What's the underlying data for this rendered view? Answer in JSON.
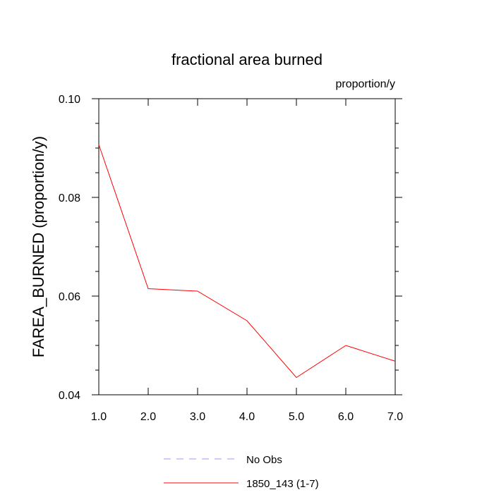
{
  "chart_data": {
    "type": "line",
    "title": "fractional area burned",
    "units_label": "proportion/y",
    "ylabel": "FAREA_BURNED  (proportion/y)",
    "xlabel": "",
    "xlim": [
      1,
      7
    ],
    "ylim": [
      0.04,
      0.1
    ],
    "x_ticks": [
      {
        "value": 1,
        "label": "1.0"
      },
      {
        "value": 2,
        "label": "2.0"
      },
      {
        "value": 3,
        "label": "3.0"
      },
      {
        "value": 4,
        "label": "4.0"
      },
      {
        "value": 5,
        "label": "5.0"
      },
      {
        "value": 6,
        "label": "6.0"
      },
      {
        "value": 7,
        "label": "7.0"
      }
    ],
    "x_minor_ticks": [],
    "y_ticks": [
      {
        "value": 0.04,
        "label": "0.04"
      },
      {
        "value": 0.06,
        "label": "0.06"
      },
      {
        "value": 0.08,
        "label": "0.08"
      },
      {
        "value": 0.1,
        "label": "0.10"
      }
    ],
    "y_minor_ticks": [
      0.045,
      0.05,
      0.055,
      0.065,
      0.07,
      0.075,
      0.085,
      0.09,
      0.095
    ],
    "grid": false,
    "legend_position": "bottom",
    "series": [
      {
        "name": "1850_143 (1-7)",
        "color": "#ff0000",
        "dash": "solid",
        "x": [
          1,
          2,
          3,
          4,
          5,
          6,
          7
        ],
        "y": [
          0.0907,
          0.0615,
          0.061,
          0.055,
          0.0435,
          0.05,
          0.0468
        ]
      }
    ],
    "legend": [
      {
        "label": "No Obs",
        "color": "#9999ff",
        "dash": "dashed"
      },
      {
        "label": "1850_143 (1-7)",
        "color": "#ff0000",
        "dash": "solid"
      }
    ]
  }
}
